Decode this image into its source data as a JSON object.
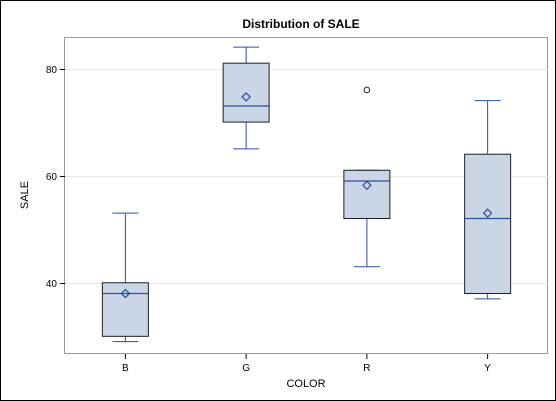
{
  "chart_data": {
    "type": "box",
    "title": "Distribution of SALE",
    "xlabel": "COLOR",
    "ylabel": "SALE",
    "categories": [
      "B",
      "G",
      "R",
      "Y"
    ],
    "ylim": [
      26.7,
      85.7
    ],
    "yticks": [
      40,
      60,
      80
    ],
    "grid": "horizontal",
    "boxes": [
      {
        "category": "B",
        "min": 29,
        "q1": 30,
        "median": 38,
        "q3": 40,
        "max": 53,
        "mean": 38,
        "outliers": []
      },
      {
        "category": "G",
        "min": 65,
        "q1": 70,
        "median": 73,
        "q3": 81,
        "max": 84,
        "mean": 74.7,
        "outliers": []
      },
      {
        "category": "R",
        "min": 43,
        "q1": 52,
        "median": 59,
        "q3": 61,
        "max": 61,
        "mean": 58.2,
        "outliers": [
          76
        ]
      },
      {
        "category": "Y",
        "min": 37,
        "q1": 38,
        "median": 52,
        "q3": 64,
        "max": 74,
        "mean": 53,
        "outliers": []
      }
    ],
    "colors": {
      "box_fill": "#cad5e5",
      "box_stroke": "#1f1f1f",
      "whisker": "#2c4f9e",
      "median": "#2c4f9e",
      "mean_marker": "#2c4f9e",
      "outlier": "#1f1f1f",
      "grid": "#e8e8e8",
      "frame": "#9a9a9a"
    }
  }
}
